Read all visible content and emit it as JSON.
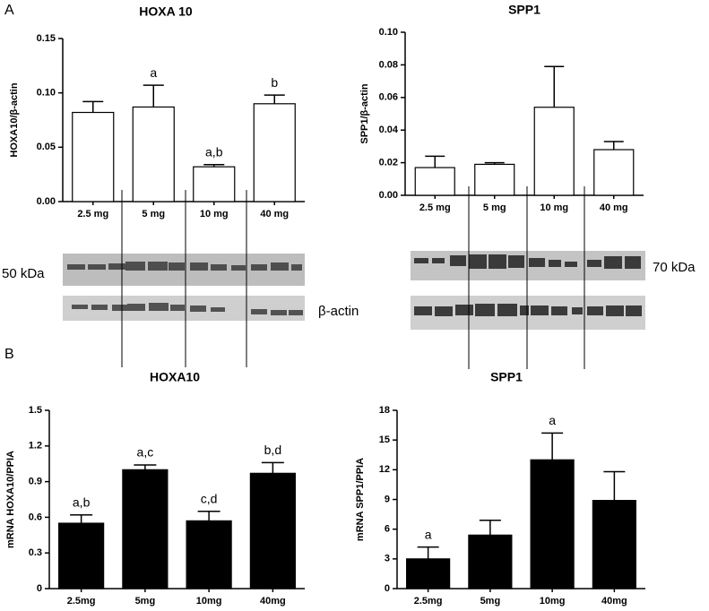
{
  "panels": [
    "A",
    "B"
  ],
  "blot_labels": {
    "hoxa10": "50 kDa",
    "actin": "β-actin",
    "spp1": "70 kDa"
  },
  "chart_data": [
    {
      "type": "bar",
      "title": "HOXA 10",
      "y_label": "HOXA10/β-actin",
      "color": "#ffffff",
      "categories": [
        "2.5 mg",
        "5 mg",
        "10 mg",
        "40 mg"
      ],
      "values": [
        0.082,
        0.087,
        0.032,
        0.09
      ],
      "errors": [
        0.01,
        0.02,
        0.002,
        0.008
      ],
      "annotations": [
        null,
        "a",
        "a,b",
        "b"
      ],
      "ylim": [
        0,
        0.15
      ],
      "yticks": [
        {
          "value": 0,
          "label": "0.00"
        },
        {
          "value": 0.05,
          "label": "0.05"
        },
        {
          "value": 0.1,
          "label": "0.10"
        },
        {
          "value": 0.15,
          "label": "0.15"
        }
      ]
    },
    {
      "type": "bar",
      "title": "SPP1",
      "y_label": "SPP1/β-actin",
      "color": "#ffffff",
      "categories": [
        "2.5 mg",
        "5 mg",
        "10 mg",
        "40 mg"
      ],
      "values": [
        0.017,
        0.019,
        0.054,
        0.028
      ],
      "errors": [
        0.007,
        0.001,
        0.025,
        0.005
      ],
      "annotations": [
        null,
        null,
        null,
        null
      ],
      "ylim": [
        0,
        0.1
      ],
      "yticks": [
        {
          "value": 0,
          "label": "0.00"
        },
        {
          "value": 0.02,
          "label": "0.02"
        },
        {
          "value": 0.04,
          "label": "0.04"
        },
        {
          "value": 0.06,
          "label": "0.06"
        },
        {
          "value": 0.08,
          "label": "0.08"
        },
        {
          "value": 0.1,
          "label": "0.10"
        }
      ]
    },
    {
      "type": "bar",
      "title": "HOXA10",
      "y_label": "mRNA HOXA10/PPIA",
      "color": "#000000",
      "categories": [
        "2.5mg",
        "5mg",
        "10mg",
        "40mg"
      ],
      "values": [
        0.55,
        1.0,
        0.57,
        0.97
      ],
      "errors": [
        0.07,
        0.04,
        0.08,
        0.09
      ],
      "annotations": [
        "a,b",
        "a,c",
        "c,d",
        "b,d"
      ],
      "ylim": [
        0,
        1.5
      ],
      "yticks": [
        0,
        0.3,
        0.6,
        0.9,
        1.2,
        1.5
      ]
    },
    {
      "type": "bar",
      "title": "SPP1",
      "y_label": "mRNA SPP1/PPIA",
      "color": "#000000",
      "categories": [
        "2.5mg",
        "5mg",
        "10mg",
        "40mg"
      ],
      "values": [
        3.0,
        5.4,
        13.0,
        8.9
      ],
      "errors": [
        1.2,
        1.5,
        2.7,
        2.9
      ],
      "annotations": [
        "a",
        null,
        "a",
        null
      ],
      "ylim": [
        0,
        18
      ],
      "yticks": [
        0,
        3,
        6,
        9,
        12,
        15,
        18
      ]
    }
  ]
}
